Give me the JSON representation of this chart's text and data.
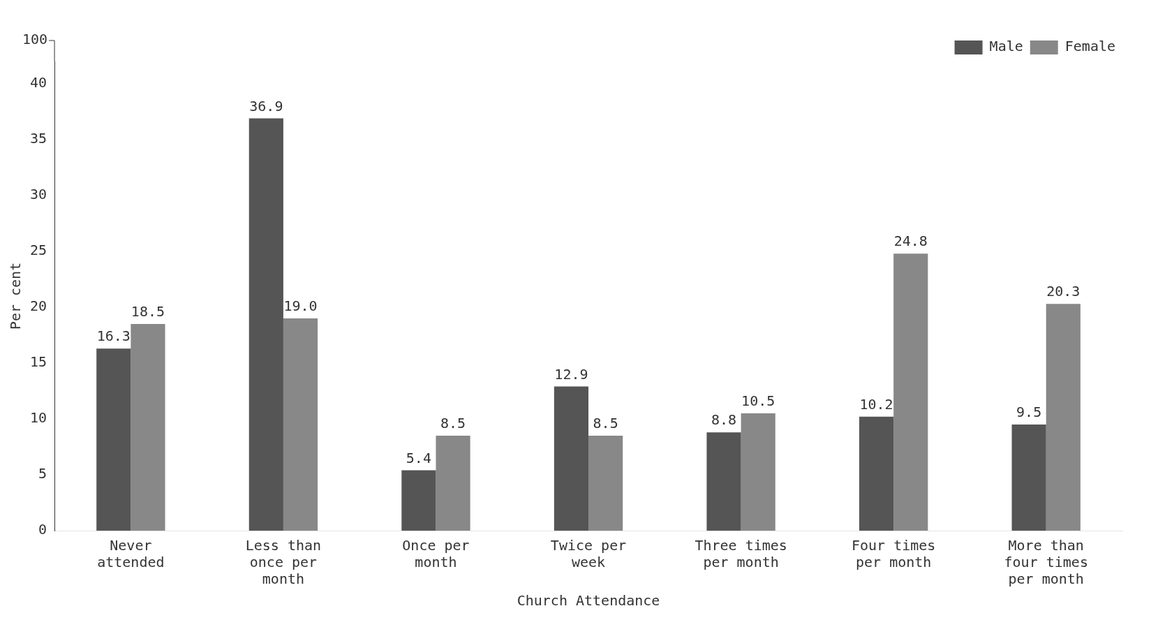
{
  "chart_data": {
    "type": "bar",
    "xlabel": "Church Attendance",
    "ylabel": "Per cent",
    "categories": [
      "Never attended",
      "Less than once per month",
      "Once per month",
      "Twice per week",
      "Three times per month",
      "Four times per month",
      "More than four times per month"
    ],
    "series": [
      {
        "name": "Male",
        "color": "#555555",
        "values": [
          16.3,
          36.9,
          5.4,
          12.9,
          8.8,
          10.2,
          9.5
        ],
        "value_labels": [
          "16.3",
          "36.9",
          "5.4",
          "12.9",
          "8.8",
          "10.2",
          "9.5"
        ]
      },
      {
        "name": "Female",
        "color": "#888888",
        "values": [
          18.5,
          19.0,
          8.5,
          8.5,
          10.5,
          24.8,
          20.3
        ],
        "value_labels": [
          "18.5",
          "19.0",
          "8.5",
          "8.5",
          "10.5",
          "24.8",
          "20.3"
        ]
      }
    ],
    "ylim": [
      0,
      42
    ],
    "yticks": [
      0,
      5,
      10,
      15,
      20,
      25,
      30,
      35,
      40
    ],
    "annotations": [
      "100"
    ],
    "grid": false,
    "legend": "top right"
  }
}
